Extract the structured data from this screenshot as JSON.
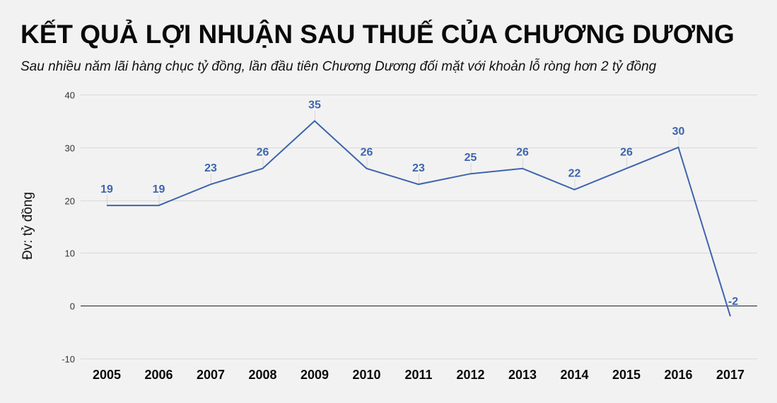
{
  "header": {
    "title": "KẾT QUẢ LỢI NHUẬN SAU THUẾ CỦA CHƯƠNG DƯƠNG",
    "subtitle": "Sau nhiều năm lãi hàng chục tỷ đồng, lần đầu tiên Chương Dương đối mặt với khoản lỗ ròng hơn 2 tỷ đồng"
  },
  "colors": {
    "background": "#f2f2f2",
    "line": "#3d65ad",
    "label": "#3d65ad",
    "grid": "#d9d9d9",
    "zero_line": "#222222"
  },
  "chart_data": {
    "type": "line",
    "title": "KẾT QUẢ LỢI NHUẬN SAU THUẾ CỦA CHƯƠNG DƯƠNG",
    "subtitle": "Sau nhiều năm lãi hàng chục tỷ đồng, lần đầu tiên Chương Dương đối mặt với khoản lỗ ròng hơn 2 tỷ đồng",
    "xlabel": "",
    "ylabel": "Đv: tỷ đồng",
    "categories": [
      "2005",
      "2006",
      "2007",
      "2008",
      "2009",
      "2010",
      "2011",
      "2012",
      "2013",
      "2014",
      "2015",
      "2016",
      "2017"
    ],
    "series": [
      {
        "name": "Lợi nhuận sau thuế",
        "values": [
          19,
          19,
          23,
          26,
          35,
          26,
          23,
          25,
          26,
          22,
          26,
          30,
          -2
        ],
        "labels": [
          "19",
          "19",
          "23",
          "26",
          "35",
          "26",
          "23",
          "25",
          "26",
          "22",
          "26",
          "30",
          "-2"
        ]
      }
    ],
    "ylim": [
      -10,
      40
    ],
    "yticks": [
      40,
      30,
      20,
      10,
      0,
      -10
    ],
    "grid": true,
    "legend": "none"
  }
}
